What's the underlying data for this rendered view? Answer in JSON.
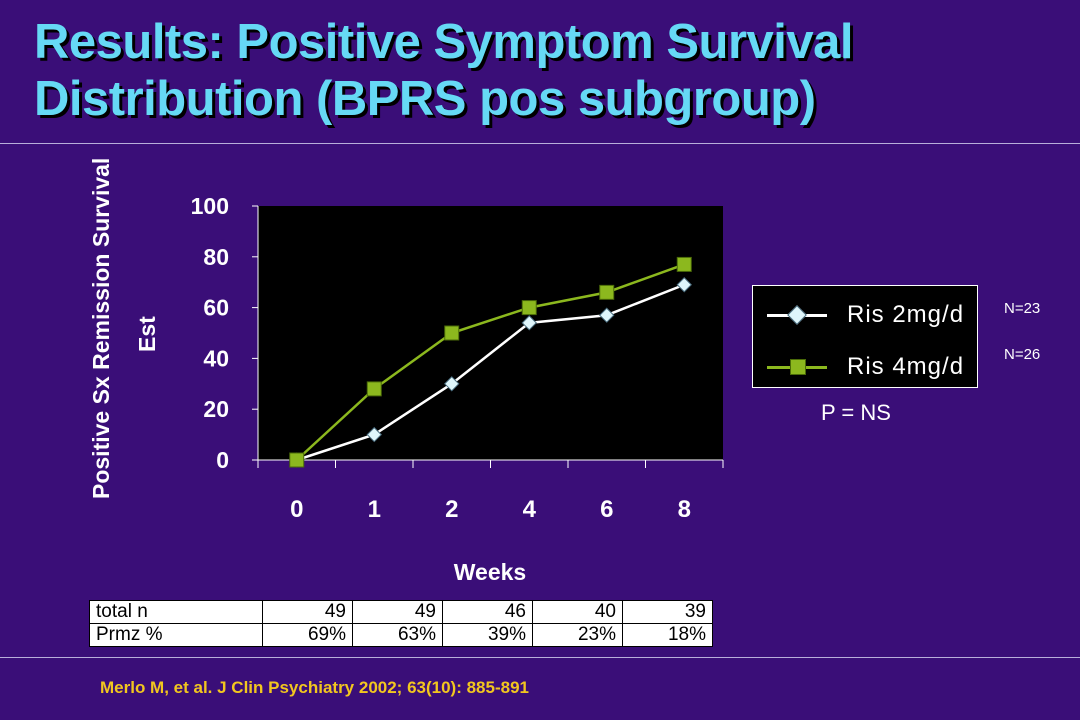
{
  "slide": {
    "title_line1": "Results:  Positive Symptom Survival",
    "title_line2": "Distribution (BPRS pos subgroup)",
    "p_value": "P = NS",
    "citation": "Merlo M, et al.  J Clin Psychiatry 2002; 63(10): 885-891",
    "colors": {
      "background": "#3a0e78",
      "title": "#66d9f5",
      "citation": "#f2c61f",
      "series_2mg": "#ffffff",
      "series_4mg": "#8cb81e"
    }
  },
  "chart_data": {
    "type": "line",
    "categories": [
      "0",
      "1",
      "2",
      "4",
      "6",
      "8"
    ],
    "series": [
      {
        "name": "Ris 2mg/d",
        "values": [
          0,
          10,
          30,
          54,
          57,
          69
        ],
        "marker": "diamond",
        "n_label": "N=23"
      },
      {
        "name": "Ris 4mg/d",
        "values": [
          0,
          28,
          50,
          60,
          66,
          77
        ],
        "marker": "square",
        "n_label": "N=26"
      }
    ],
    "xlabel": "Weeks",
    "ylabel_line1": "Positive Sx Remission Survival",
    "ylabel_line2": "Est",
    "yticks": [
      "100",
      "80",
      "60",
      "40",
      "20",
      "0"
    ],
    "ylim": [
      0,
      100
    ],
    "legend_position": "right",
    "plot_background": "#000000"
  },
  "table": {
    "rows": [
      {
        "label": "total n",
        "values": [
          "49",
          "49",
          "46",
          "40",
          "39"
        ]
      },
      {
        "label": "Prmz %",
        "values": [
          "69%",
          "63%",
          "39%",
          "23%",
          "18%"
        ]
      }
    ]
  }
}
